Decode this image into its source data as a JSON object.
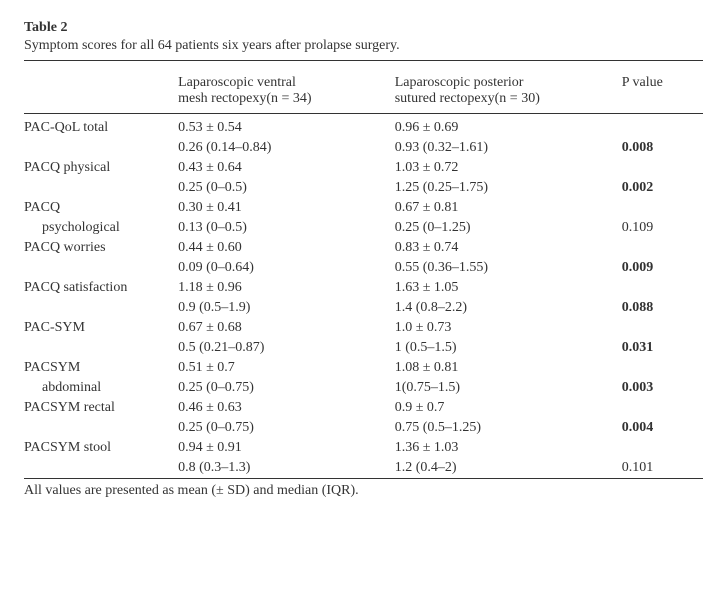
{
  "table_label": "Table 2",
  "caption": "Symptom scores for all 64 patients six years after prolapse surgery.",
  "columns": {
    "blank": "",
    "col1_line1": "Laparoscopic ventral",
    "col1_line2": "mesh rectopexy(n = 34)",
    "col2_line1": "Laparoscopic posterior",
    "col2_line2": "sutured rectopexy(n = 30)",
    "col3": "P value"
  },
  "rows": [
    {
      "label": "PAC-QoL total",
      "mean1": "0.53 ± 0.54",
      "median1": "0.26 (0.14–0.84)",
      "mean2": "0.96 ± 0.69",
      "median2": "0.93 (0.32–1.61)",
      "p": "0.008",
      "pbold": true
    },
    {
      "label": "PACQ physical",
      "mean1": "0.43 ± 0.64",
      "median1": "0.25 (0–0.5)",
      "mean2": "1.03 ± 0.72",
      "median2": "1.25 (0.25–1.75)",
      "p": "0.002",
      "pbold": true
    },
    {
      "label": "PACQ",
      "label2": "psychological",
      "mean1": "0.30 ± 0.41",
      "median1": "0.13 (0–0.5)",
      "mean2": "0.67 ± 0.81",
      "median2": "0.25 (0–1.25)",
      "p": "0.109",
      "pbold": false
    },
    {
      "label": "PACQ worries",
      "mean1": "0.44 ± 0.60",
      "median1": "0.09 (0–0.64)",
      "mean2": "0.83 ± 0.74",
      "median2": "0.55 (0.36–1.55)",
      "p": "0.009",
      "pbold": true
    },
    {
      "label": "PACQ satisfaction",
      "mean1": "1.18 ± 0.96",
      "median1": "0.9 (0.5–1.9)",
      "mean2": "1.63 ± 1.05",
      "median2": "1.4 (0.8–2.2)",
      "p": "0.088",
      "pbold": true
    },
    {
      "label": "PAC-SYM",
      "mean1": "0.67 ± 0.68",
      "median1": "0.5 (0.21–0.87)",
      "mean2": "1.0 ± 0.73",
      "median2": "1 (0.5–1.5)",
      "p": "0.031",
      "pbold": true
    },
    {
      "label": "PACSYM",
      "label2": "abdominal",
      "mean1": "0.51 ± 0.7",
      "median1": "0.25 (0–0.75)",
      "mean2": "1.08 ± 0.81",
      "median2": "1(0.75–1.5)",
      "p": "0.003",
      "pbold": true
    },
    {
      "label": "PACSYM rectal",
      "mean1": "0.46 ± 0.63",
      "median1": "0.25 (0–0.75)",
      "mean2": "0.9 ± 0.7",
      "median2": "0.75 (0.5–1.25)",
      "p": "0.004",
      "pbold": true
    },
    {
      "label": "PACSYM stool",
      "mean1": "0.94 ± 0.91",
      "median1": "0.8 (0.3–1.3)",
      "mean2": "1.36 ± 1.03",
      "median2": "1.2 (0.4–2)",
      "p": "0.101",
      "pbold": false
    }
  ],
  "footnote": "All values are presented as mean (± SD) and median (IQR)."
}
